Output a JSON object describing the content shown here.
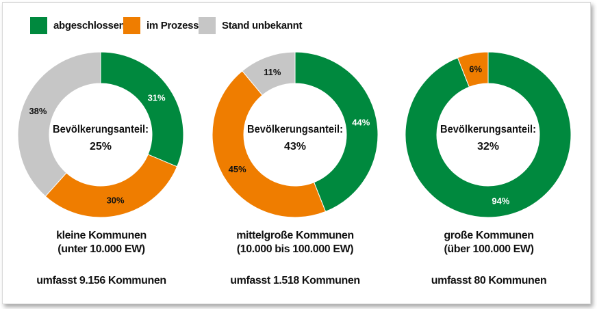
{
  "legend": [
    {
      "label": "abgeschlossen",
      "color": "#00893e"
    },
    {
      "label": "im Prozess",
      "color": "#ef7d00"
    },
    {
      "label": "Stand unbekannt",
      "color": "#c6c6c6"
    }
  ],
  "chart_data": [
    {
      "type": "pie",
      "style": "donut",
      "center_label": "Bevölkerungsanteil:",
      "center_value": "25%",
      "title_line1": "kleine Kommunen",
      "title_line2": "(unter 10.000 EW)",
      "subtitle": "umfasst 9.156 Kommunen",
      "slices": [
        {
          "category": "abgeschlossen",
          "value": 31,
          "label": "31%"
        },
        {
          "category": "im Prozess",
          "value": 30,
          "label": "30%"
        },
        {
          "category": "Stand unbekannt",
          "value": 38,
          "label": "38%"
        }
      ]
    },
    {
      "type": "pie",
      "style": "donut",
      "center_label": "Bevölkerungsanteil:",
      "center_value": "43%",
      "title_line1": "mittelgroße Kommunen",
      "title_line2": "(10.000 bis 100.000 EW)",
      "subtitle": "umfasst 1.518 Kommunen",
      "slices": [
        {
          "category": "abgeschlossen",
          "value": 44,
          "label": "44%"
        },
        {
          "category": "im Prozess",
          "value": 45,
          "label": "45%"
        },
        {
          "category": "Stand unbekannt",
          "value": 11,
          "label": "11%"
        }
      ]
    },
    {
      "type": "pie",
      "style": "donut",
      "center_label": "Bevölkerungsanteil:",
      "center_value": "32%",
      "title_line1": "große Kommunen",
      "title_line2": "(über 100.000 EW)",
      "subtitle": "umfasst 80 Kommunen",
      "slices": [
        {
          "category": "abgeschlossen",
          "value": 94,
          "label": "94%"
        },
        {
          "category": "im Prozess",
          "value": 6,
          "label": "6%"
        }
      ]
    }
  ]
}
